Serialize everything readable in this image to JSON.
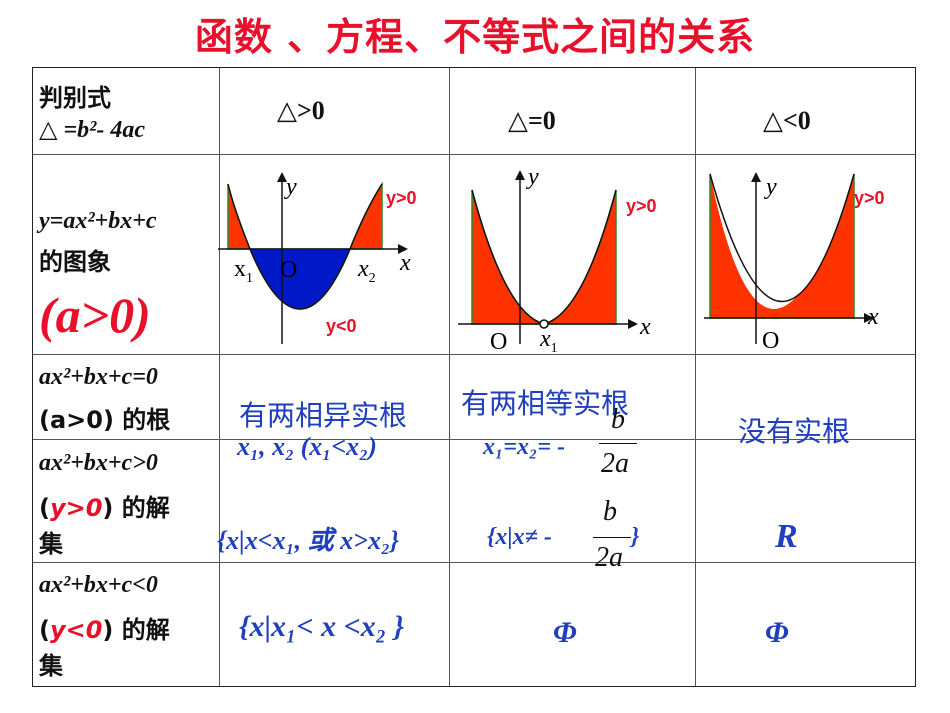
{
  "title": "函数 、方程、不等式之间的关系",
  "header": {
    "label_line1": "判别式",
    "label_line2": "△ =b²- 4ac",
    "col1": "△>0",
    "col2": "△=0",
    "col3": "△<0"
  },
  "row_graph": {
    "label_line1": "y=ax²+bx+c",
    "label_line2": "的图象",
    "label_a": "(a>0)",
    "graph1": {
      "y": "y",
      "x": "x",
      "O": "O",
      "x1": "x",
      "x1_sub": "1",
      "x2": "x",
      "x2_sub": "2",
      "pos": "y>0",
      "neg": "y<0"
    },
    "graph2": {
      "y": "y",
      "x": "x",
      "O": "O",
      "x1": "x",
      "x1_sub": "1",
      "pos": "y>0"
    },
    "graph3": {
      "y": "y",
      "x": "x",
      "O": "O",
      "pos": "y>0"
    }
  },
  "row_roots": {
    "label_line1": "ax²+bx+c=0",
    "label_line2": "(a>0) 的根",
    "col1_line1": "有两相异实根",
    "col1_line2": "x₁, x₂ (x₁<x₂)",
    "col2_line1": "有两相等实根",
    "col2_line2": "x₁=x₂= -",
    "col2_frac_num": "b",
    "col2_frac_den": "2a",
    "col3": "没有实根"
  },
  "row_gt": {
    "label_line1": "ax²+bx+c>0",
    "label_line2_a": "(",
    "label_line2_b": "y>0",
    "label_line2_c": ") 的解",
    "label_line3": "集",
    "col1": "{x|x<x₁, 或   x>x₂}",
    "col2_left": "{x|x≠ -",
    "col2_frac_num": "b",
    "col2_frac_den": "2a",
    "col2_right": "}",
    "col3": "R"
  },
  "row_lt": {
    "label_line1": "ax²+bx+c<0",
    "label_line2_a": "(",
    "label_line2_b": "y<0",
    "label_line2_c": ") 的解",
    "label_line3": "集",
    "col1": "{x|x₁< x <x₂ }",
    "col2": "Φ",
    "col3": "Φ"
  }
}
